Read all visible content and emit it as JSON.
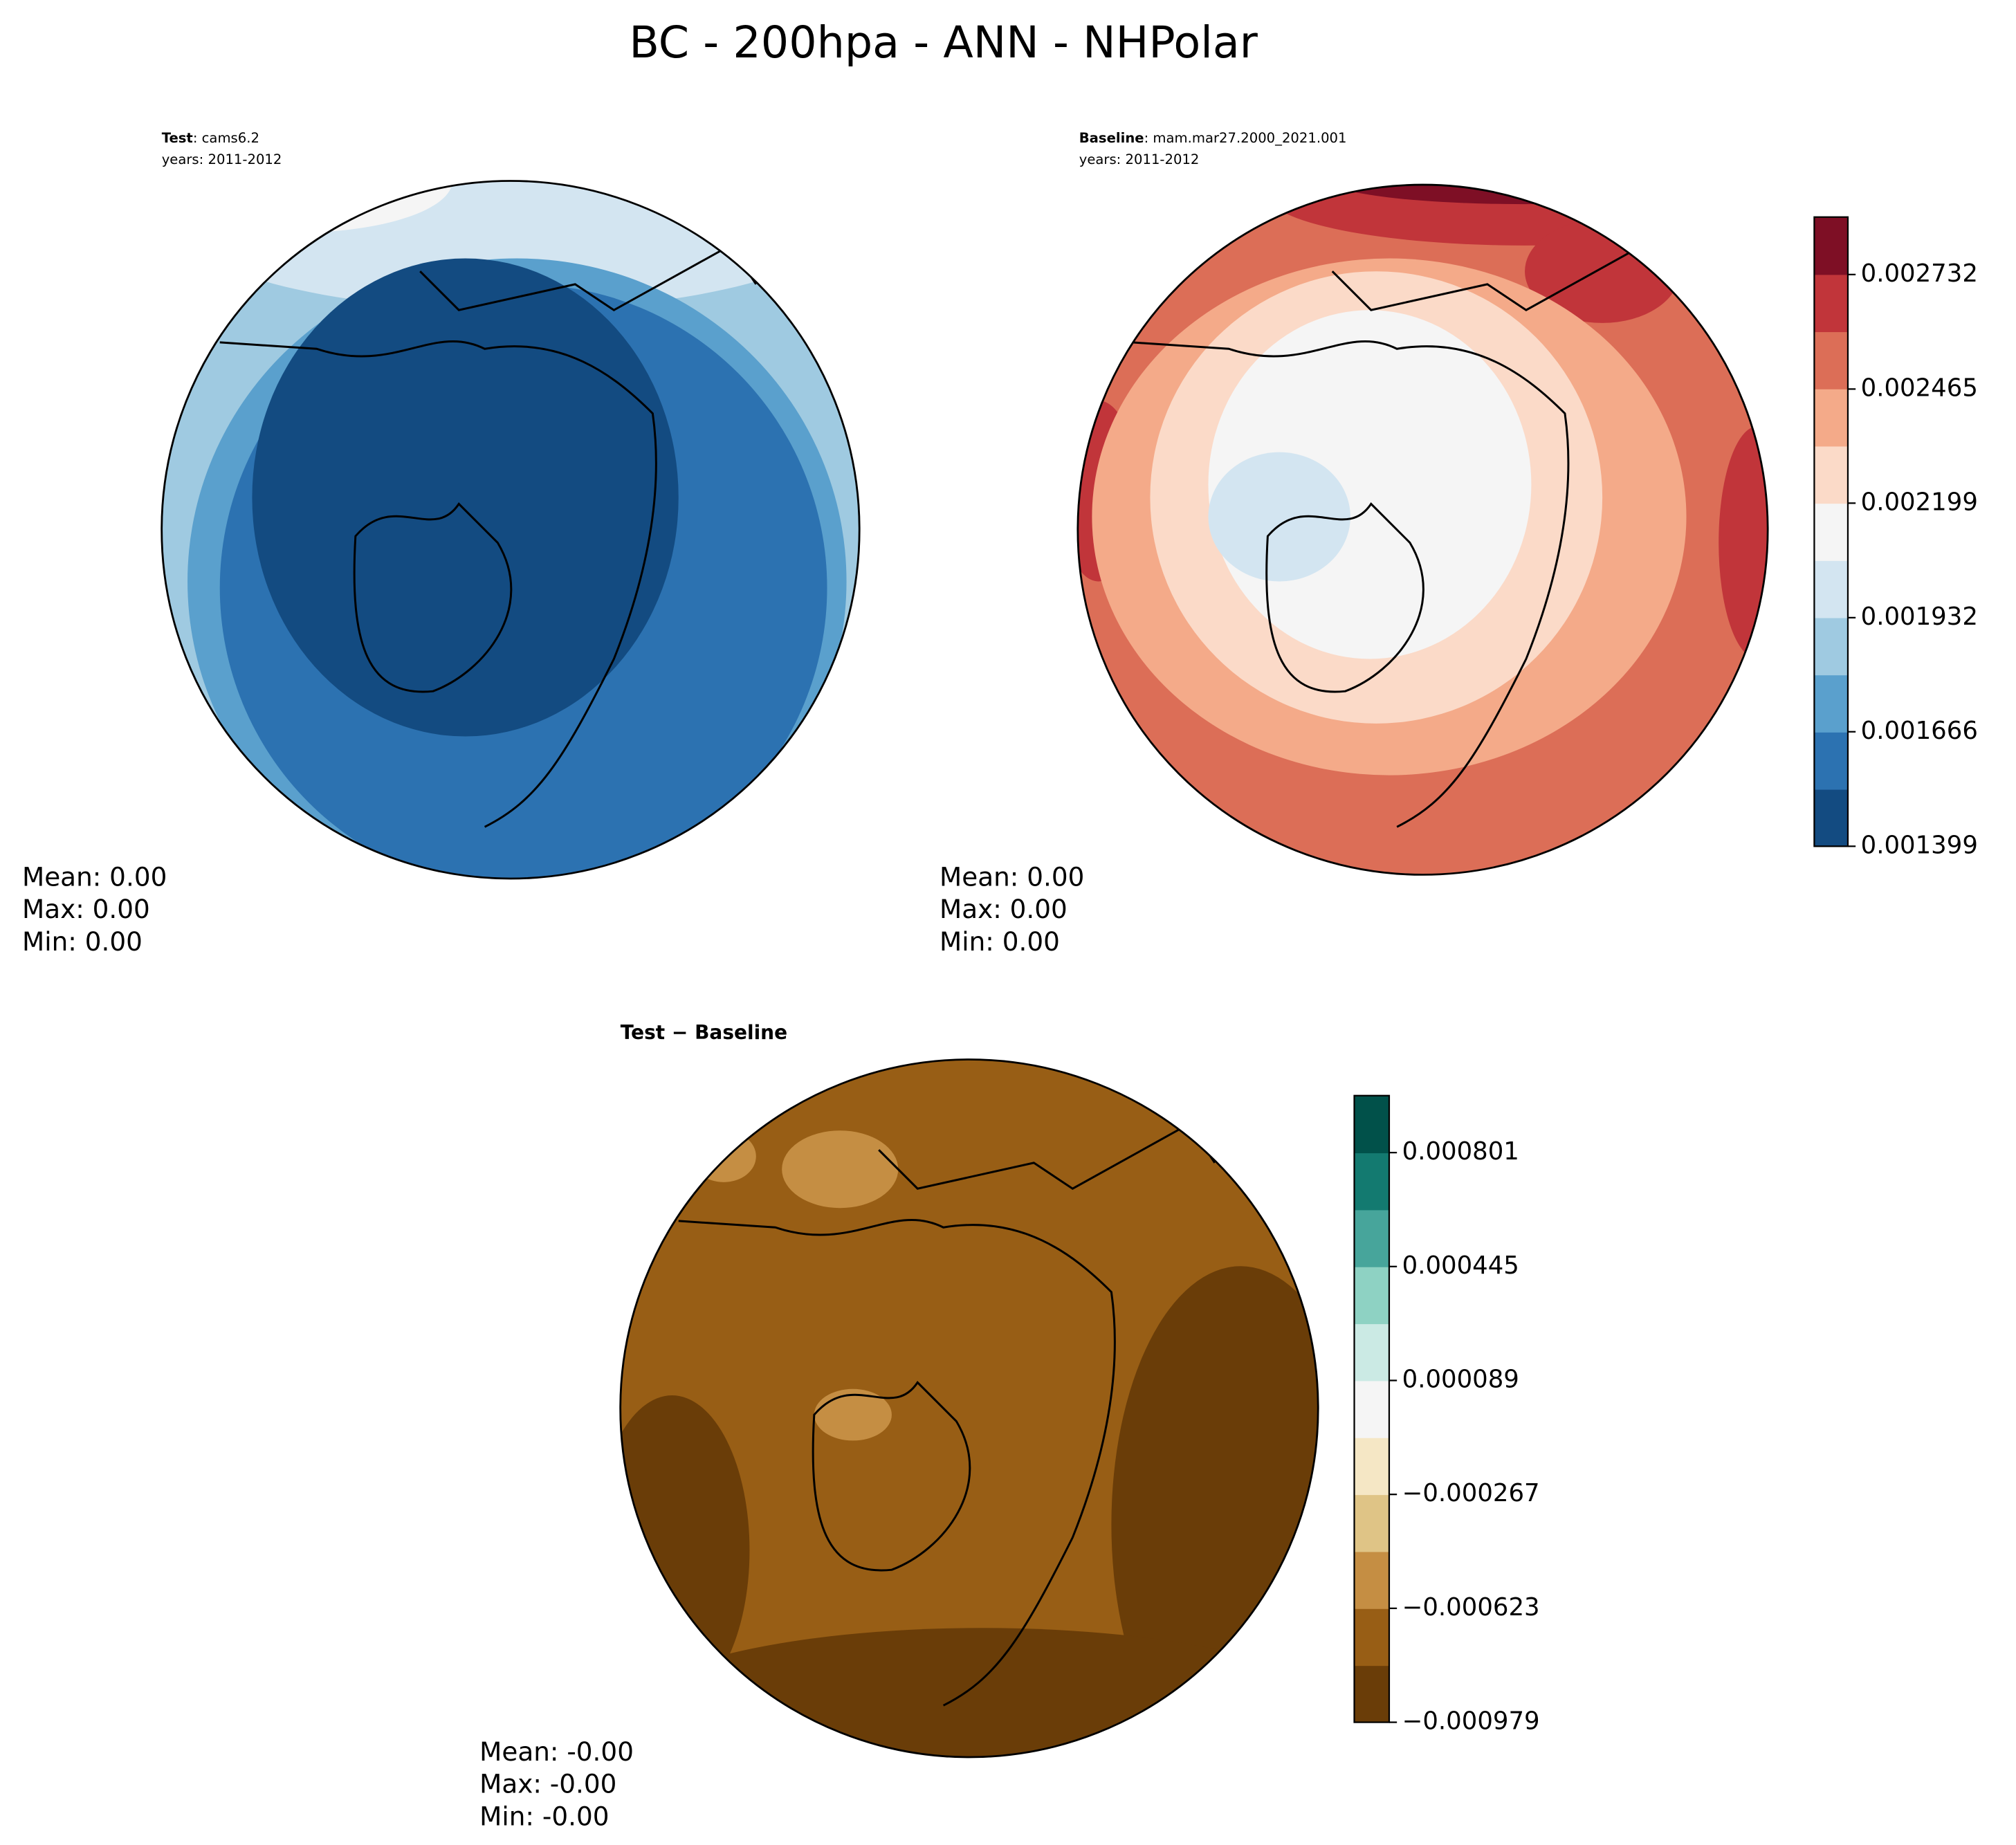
{
  "title": "BC - 200hpa - ANN - NHPolar",
  "panels": [
    {
      "name": "Test",
      "label": ": cams6.2",
      "years": "years: 2011-2012",
      "stats": [
        "Mean:  0.00",
        "Max:  0.00",
        "Min:  0.00"
      ]
    },
    {
      "name": "Baseline",
      "label": ": mam.mar27.2000_2021.001",
      "years": "years: 2011-2012",
      "stats": [
        "Mean:  0.00",
        "Max:  0.00",
        "Min:  0.00"
      ]
    },
    {
      "name": "Test − Baseline",
      "stats": [
        "Mean: -0.00",
        "Max: -0.00",
        "Min: -0.00"
      ]
    }
  ],
  "colorbars": [
    {
      "lim": [
        0.001399,
        0.002866
      ],
      "ticks": [
        0.001399,
        0.001666,
        0.001932,
        0.002199,
        0.002465,
        0.002732
      ],
      "colors": [
        "#134b81",
        "#2c72b1",
        "#5aa0cd",
        "#9fcae1",
        "#d3e5f1",
        "#f5f5f5",
        "#fbdac8",
        "#f4aa89",
        "#dc6e57",
        "#c1353a",
        "#7e0f25"
      ]
    },
    {
      "lim": [
        -0.000979,
        0.000979
      ],
      "ticks": [
        {
          "value": -0.000979,
          "label": "−0.000979"
        },
        {
          "value": -0.000623,
          "label": "−0.000623"
        },
        {
          "value": -0.000267,
          "label": "−0.000267"
        },
        8.9e-05,
        0.000445,
        0.000801
      ],
      "colors": [
        "#6a3d08",
        "#985e15",
        "#c58e43",
        "#dfc486",
        "#f5e7c5",
        "#f5f5f5",
        "#cbeae4",
        "#8ed2c3",
        "#47a59b",
        "#137a70",
        "#01514a"
      ]
    }
  ]
}
